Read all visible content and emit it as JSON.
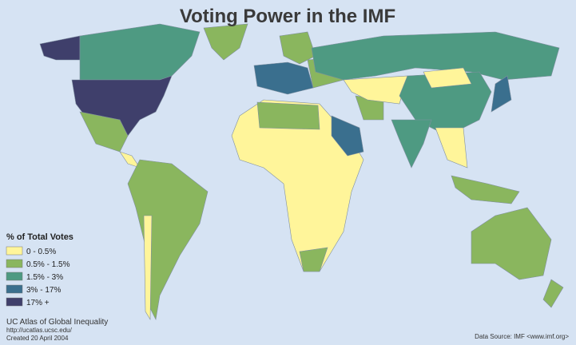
{
  "title": "Voting Power in the IMF",
  "legend": {
    "title": "% of Total Votes",
    "items": [
      {
        "label": "0 - 0.5%",
        "color": "#fff59a"
      },
      {
        "label": "0.5% - 1.5%",
        "color": "#8ab65e"
      },
      {
        "label": "1.5% - 3%",
        "color": "#4e9a82"
      },
      {
        "label": "3% - 17%",
        "color": "#3a6f8e"
      },
      {
        "label": "17% +",
        "color": "#3f3f6b"
      }
    ]
  },
  "credits": {
    "lines": [
      "UC Atlas of Global Inequality",
      "http://ucatlas.ucsc.edu/",
      "Created 20 April 2004"
    ]
  },
  "source": "Data Source: IMF <www.imf.org>"
}
